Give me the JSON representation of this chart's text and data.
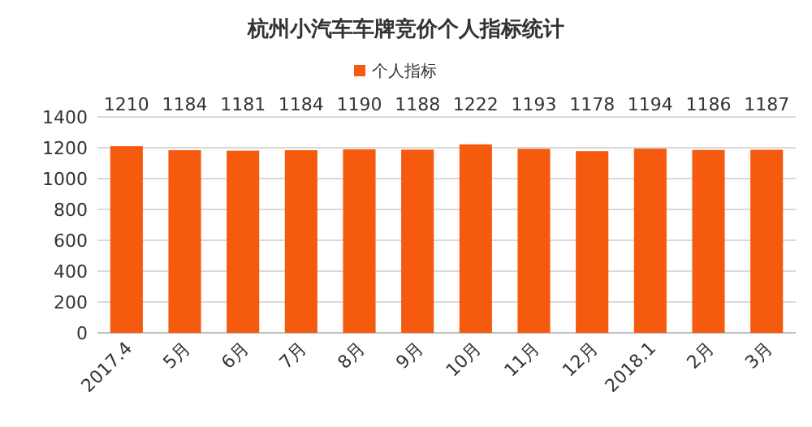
{
  "chart_data": {
    "type": "bar",
    "title": "杭州小汽车车牌竞价个人指标统计",
    "categories": [
      "2017.4",
      "5月",
      "6月",
      "7月",
      "8月",
      "9月",
      "10月",
      "11月",
      "12月",
      "2018.1",
      "2月",
      "3月"
    ],
    "series": [
      {
        "name": "个人指标",
        "color": "#f55a0f",
        "values": [
          1210,
          1184,
          1181,
          1184,
          1190,
          1188,
          1222,
          1193,
          1178,
          1194,
          1186,
          1187
        ]
      }
    ],
    "ylim": [
      0,
      1400
    ],
    "yticks": [
      0,
      200,
      400,
      600,
      800,
      1000,
      1200,
      1400
    ],
    "grid": "y",
    "legend": "top",
    "data_labels": true
  }
}
